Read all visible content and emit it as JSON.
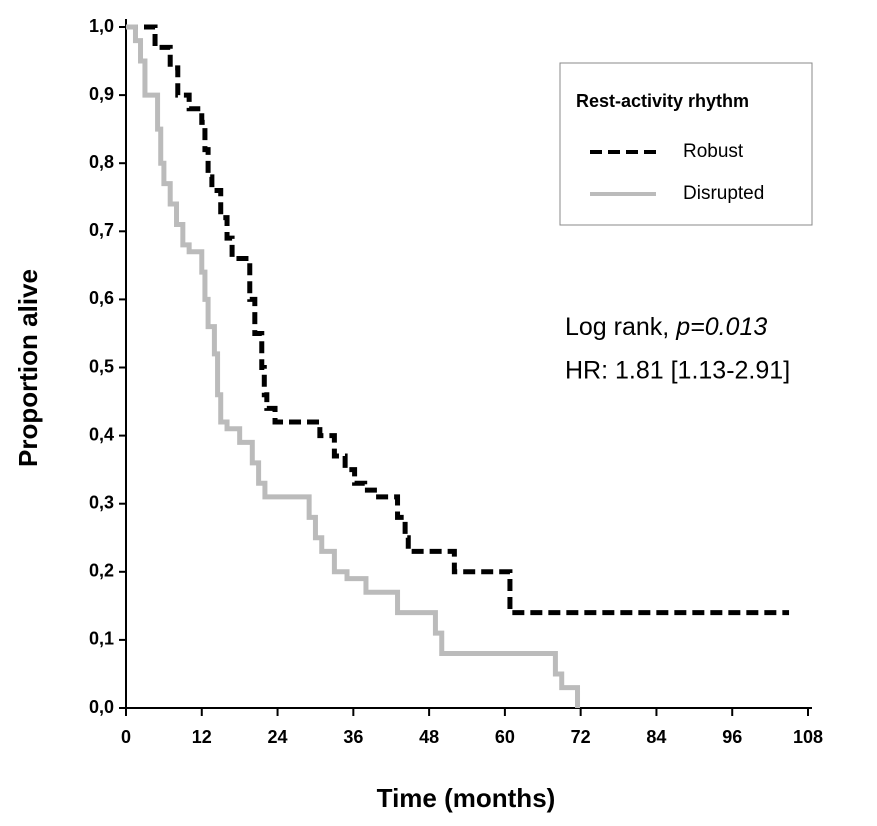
{
  "chart_data": {
    "type": "step",
    "x_label": "Time (months)",
    "y_label": "Proportion alive",
    "legend_title": "Rest-activity rhythm",
    "annotations": [
      "Log rank, ",
      "p=0.013",
      "HR:  1.81 [1.13-2.91]"
    ],
    "xlim": [
      0,
      108
    ],
    "xticks": [
      0,
      12,
      24,
      36,
      48,
      60,
      72,
      84,
      96,
      108
    ],
    "ylim": [
      0,
      1
    ],
    "yticks": [
      {
        "value": 0,
        "label": "0,0"
      },
      {
        "value": 0.1,
        "label": "0,1"
      },
      {
        "value": 0.2,
        "label": "0,2"
      },
      {
        "value": 0.3,
        "label": "0,3"
      },
      {
        "value": 0.4,
        "label": "0,4"
      },
      {
        "value": 0.5,
        "label": "0,5"
      },
      {
        "value": 0.6,
        "label": "0,6"
      },
      {
        "value": 0.7,
        "label": "0,7"
      },
      {
        "value": 0.8,
        "label": "0,8"
      },
      {
        "value": 0.9,
        "label": "0,9"
      },
      {
        "value": 1,
        "label": "1,0"
      }
    ],
    "series": [
      {
        "name": "Robust",
        "color": "#000000",
        "dashed": true,
        "x": [
          0,
          4.6,
          7,
          8.2,
          10,
          12,
          12.5,
          13,
          13.6,
          15,
          16,
          16.8,
          19.6,
          20.4,
          21.5,
          21.9,
          22.3,
          23.6,
          25,
          30.7,
          33,
          34.7,
          36.2,
          37.8,
          40,
          43,
          44.2,
          44.7,
          52,
          60.8,
          105
        ],
        "values": [
          1.0,
          0.97,
          0.94,
          0.9,
          0.88,
          0.86,
          0.82,
          0.78,
          0.76,
          0.72,
          0.69,
          0.66,
          0.6,
          0.55,
          0.5,
          0.46,
          0.44,
          0.42,
          0.42,
          0.4,
          0.37,
          0.35,
          0.33,
          0.32,
          0.31,
          0.28,
          0.25,
          0.23,
          0.2,
          0.14,
          0.14
        ]
      },
      {
        "name": "Disrupted",
        "color": "#bbbbbb",
        "dashed": false,
        "x": [
          0,
          1.5,
          2.3,
          3,
          5,
          5.5,
          6,
          7,
          8,
          9,
          10,
          12,
          12.5,
          13,
          14,
          14.5,
          15,
          16,
          18,
          20,
          21,
          22,
          29,
          30,
          31,
          33,
          35,
          38,
          43,
          49,
          50,
          68,
          69,
          71.5
        ],
        "values": [
          1.0,
          0.98,
          0.95,
          0.9,
          0.85,
          0.8,
          0.77,
          0.74,
          0.71,
          0.68,
          0.67,
          0.64,
          0.6,
          0.56,
          0.52,
          0.46,
          0.42,
          0.41,
          0.39,
          0.36,
          0.33,
          0.31,
          0.28,
          0.25,
          0.23,
          0.2,
          0.19,
          0.17,
          0.14,
          0.11,
          0.08,
          0.05,
          0.03,
          0.0
        ]
      }
    ]
  }
}
